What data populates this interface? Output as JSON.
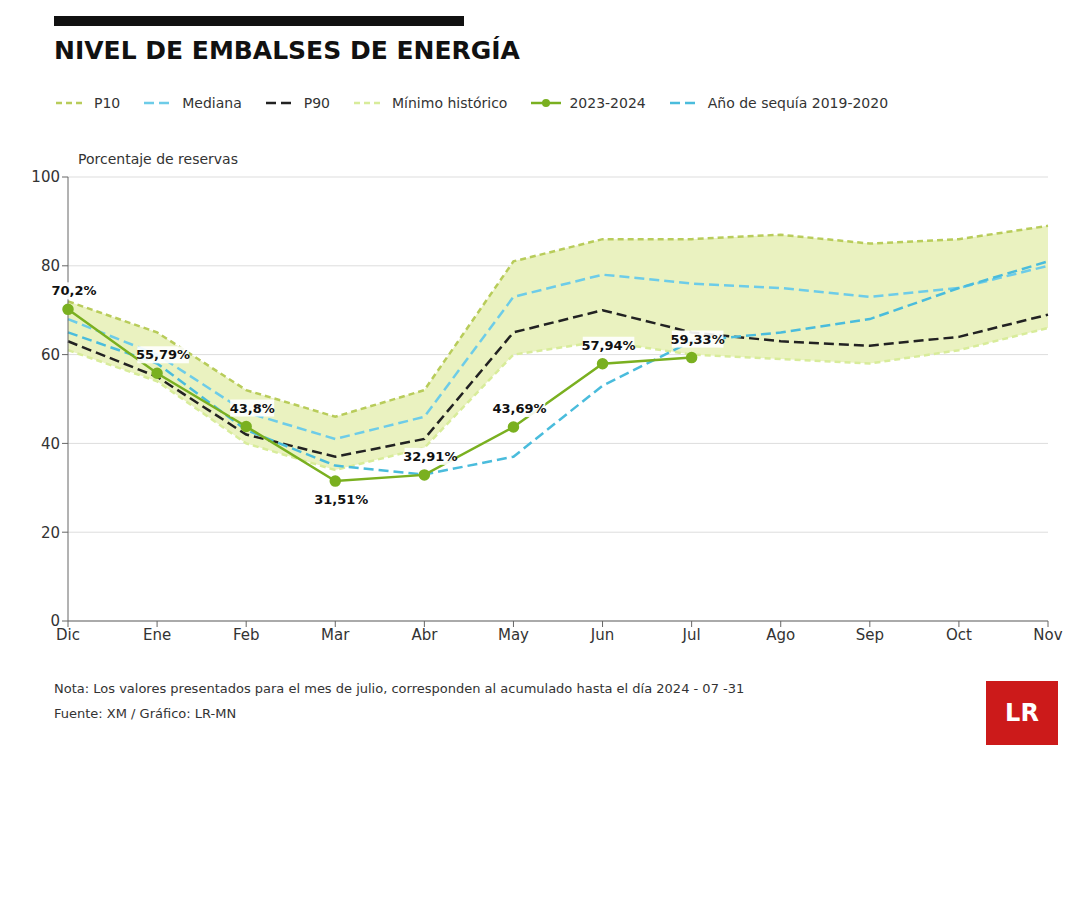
{
  "chart_data": {
    "type": "line",
    "title": "NIVEL DE EMBALSES DE ENERGÍA",
    "y_label": "Porcentaje de reservas",
    "categories": [
      "Dic",
      "Ene",
      "Feb",
      "Mar",
      "Abr",
      "May",
      "Jun",
      "Jul",
      "Ago",
      "Sep",
      "Oct",
      "Nov"
    ],
    "series": [
      {
        "name": "P10",
        "color": "#b8cc5a",
        "line_style": "dotted",
        "values": [
          72,
          65,
          52,
          46,
          52,
          81,
          86,
          86,
          87,
          85,
          86,
          89
        ]
      },
      {
        "name": "Mediana",
        "color": "#6dcce8",
        "line_style": "dashed",
        "values": [
          68,
          60,
          47,
          41,
          46,
          73,
          78,
          76,
          75,
          73,
          75,
          80
        ]
      },
      {
        "name": "P90",
        "color": "#222222",
        "line_style": "dashed",
        "values": [
          63,
          55,
          42,
          37,
          41,
          65,
          70,
          65,
          63,
          62,
          64,
          69
        ]
      },
      {
        "name": "Mínimo histórico",
        "color": "#d8ec9a",
        "line_style": "dotted",
        "values": [
          61,
          54,
          40,
          34,
          39,
          60,
          63,
          60,
          59,
          58,
          61,
          66
        ]
      },
      {
        "name": "2023-2024",
        "color": "#7ab020",
        "line_style": "solid",
        "marker": "circle",
        "values": [
          70.2,
          55.79,
          43.8,
          31.51,
          32.91,
          43.69,
          57.94,
          59.33,
          null,
          null,
          null,
          null
        ]
      },
      {
        "name": "Año de sequía 2019-2020",
        "color": "#4abcdc",
        "line_style": "dashed",
        "values": [
          65,
          58,
          43,
          35,
          33,
          37,
          53,
          63,
          65,
          68,
          75,
          81
        ]
      }
    ],
    "band": {
      "from": "Mínimo histórico",
      "to": "P10",
      "color": "#eaf2c0"
    },
    "annotations": [
      {
        "x": "Dic",
        "y": 70.2,
        "text": "70,2%",
        "position": "above"
      },
      {
        "x": "Ene",
        "y": 55.79,
        "text": "55,79%",
        "position": "above"
      },
      {
        "x": "Feb",
        "y": 43.8,
        "text": "43,8%",
        "position": "above"
      },
      {
        "x": "Mar",
        "y": 31.51,
        "text": "31,51%",
        "position": "below"
      },
      {
        "x": "Abr",
        "y": 32.91,
        "text": "32,91%",
        "position": "above"
      },
      {
        "x": "May",
        "y": 43.69,
        "text": "43,69%",
        "position": "above"
      },
      {
        "x": "Jun",
        "y": 57.94,
        "text": "57,94%",
        "position": "above"
      },
      {
        "x": "Jul",
        "y": 59.33,
        "text": "59,33%",
        "position": "above"
      }
    ],
    "ylim": [
      0,
      100
    ],
    "yticks": [
      0,
      20,
      40,
      60,
      80,
      100
    ],
    "grid": true,
    "legend": "top",
    "notes": [
      "Nota: Los valores presentados para el mes de julio, corresponden al acumulado hasta el día 2024 - 07 -31",
      "Fuente: XM / Gráfico: LR-MN"
    ],
    "logo": "LR"
  }
}
